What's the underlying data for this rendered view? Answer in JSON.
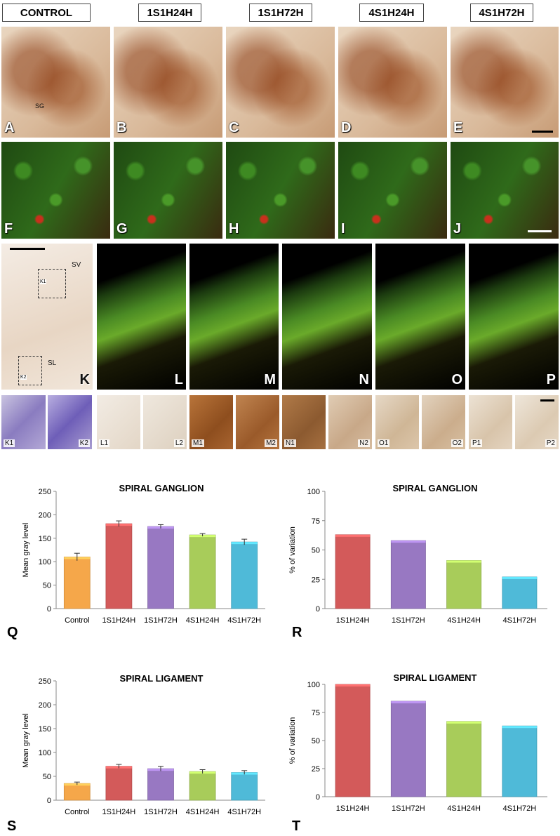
{
  "column_headers": [
    "CONTROL",
    "1S1H24H",
    "1S1H72H",
    "4S1H24H",
    "4S1H72H"
  ],
  "row1_labels": [
    "A",
    "B",
    "C",
    "D",
    "E"
  ],
  "row1_annot": {
    "sg": "SG"
  },
  "row2_labels": [
    "F",
    "G",
    "H",
    "I",
    "J"
  ],
  "row3_labels": [
    "K",
    "L",
    "M",
    "N",
    "O",
    "P"
  ],
  "row3_annot": {
    "sv": "SV",
    "sl": "SL",
    "k1": "K1",
    "k2": "K2"
  },
  "row4_labels": [
    "K1",
    "K2",
    "L1",
    "L2",
    "M1",
    "M2",
    "N1",
    "N2",
    "O1",
    "O2",
    "P1",
    "P2"
  ],
  "figure_letters": {
    "q": "Q",
    "r": "R",
    "s": "S",
    "t": "T"
  },
  "colors": {
    "control": "#F5A74A",
    "s1h24": "#D35A5A",
    "s1h72": "#9878C2",
    "s4h24": "#A8CC5A",
    "s4h72": "#4FBAD8"
  },
  "chart_data": [
    {
      "id": "Q",
      "type": "bar",
      "title": "SPIRAL GANGLION",
      "ylabel": "Mean gray level",
      "xlabel": "",
      "categories": [
        "Control",
        "1S1H24H",
        "1S1H72H",
        "4S1H24H",
        "4S1H72H"
      ],
      "values": [
        110,
        181,
        175,
        157,
        142
      ],
      "errors": [
        8,
        6,
        4,
        3,
        6
      ],
      "ylim": [
        0,
        250
      ],
      "yticks": [
        0,
        50,
        100,
        150,
        200,
        250
      ],
      "colors": [
        "#F5A74A",
        "#D35A5A",
        "#9878C2",
        "#A8CC5A",
        "#4FBAD8"
      ]
    },
    {
      "id": "R",
      "type": "bar",
      "title": "SPIRAL GANGLION",
      "ylabel": "% of variation",
      "xlabel": "",
      "categories": [
        "1S1H24H",
        "1S1H72H",
        "4S1H24H",
        "4S1H72H"
      ],
      "values": [
        63,
        58,
        41,
        27
      ],
      "ylim": [
        0,
        100
      ],
      "yticks": [
        0,
        25,
        50,
        75,
        100
      ],
      "colors": [
        "#D35A5A",
        "#9878C2",
        "#A8CC5A",
        "#4FBAD8"
      ]
    },
    {
      "id": "S",
      "type": "bar",
      "title": "SPIRAL LIGAMENT",
      "ylabel": "Mean gray level",
      "xlabel": "",
      "categories": [
        "Control",
        "1S1H24H",
        "1S1H72H",
        "4S1H24H",
        "4S1H72H"
      ],
      "values": [
        35,
        71,
        66,
        60,
        58
      ],
      "errors": [
        3,
        4,
        5,
        4,
        4
      ],
      "ylim": [
        0,
        250
      ],
      "yticks": [
        0,
        50,
        100,
        150,
        200,
        250
      ],
      "colors": [
        "#F5A74A",
        "#D35A5A",
        "#9878C2",
        "#A8CC5A",
        "#4FBAD8"
      ]
    },
    {
      "id": "T",
      "type": "bar",
      "title": "SPIRAL LIGAMENT",
      "ylabel": "% of variation",
      "xlabel": "",
      "categories": [
        "1S1H24H",
        "1S1H72H",
        "4S1H24H",
        "4S1H72H"
      ],
      "values": [
        100,
        85,
        67,
        63
      ],
      "ylim": [
        0,
        100
      ],
      "yticks": [
        0,
        25,
        50,
        75,
        100
      ],
      "colors": [
        "#D35A5A",
        "#9878C2",
        "#A8CC5A",
        "#4FBAD8"
      ]
    }
  ]
}
